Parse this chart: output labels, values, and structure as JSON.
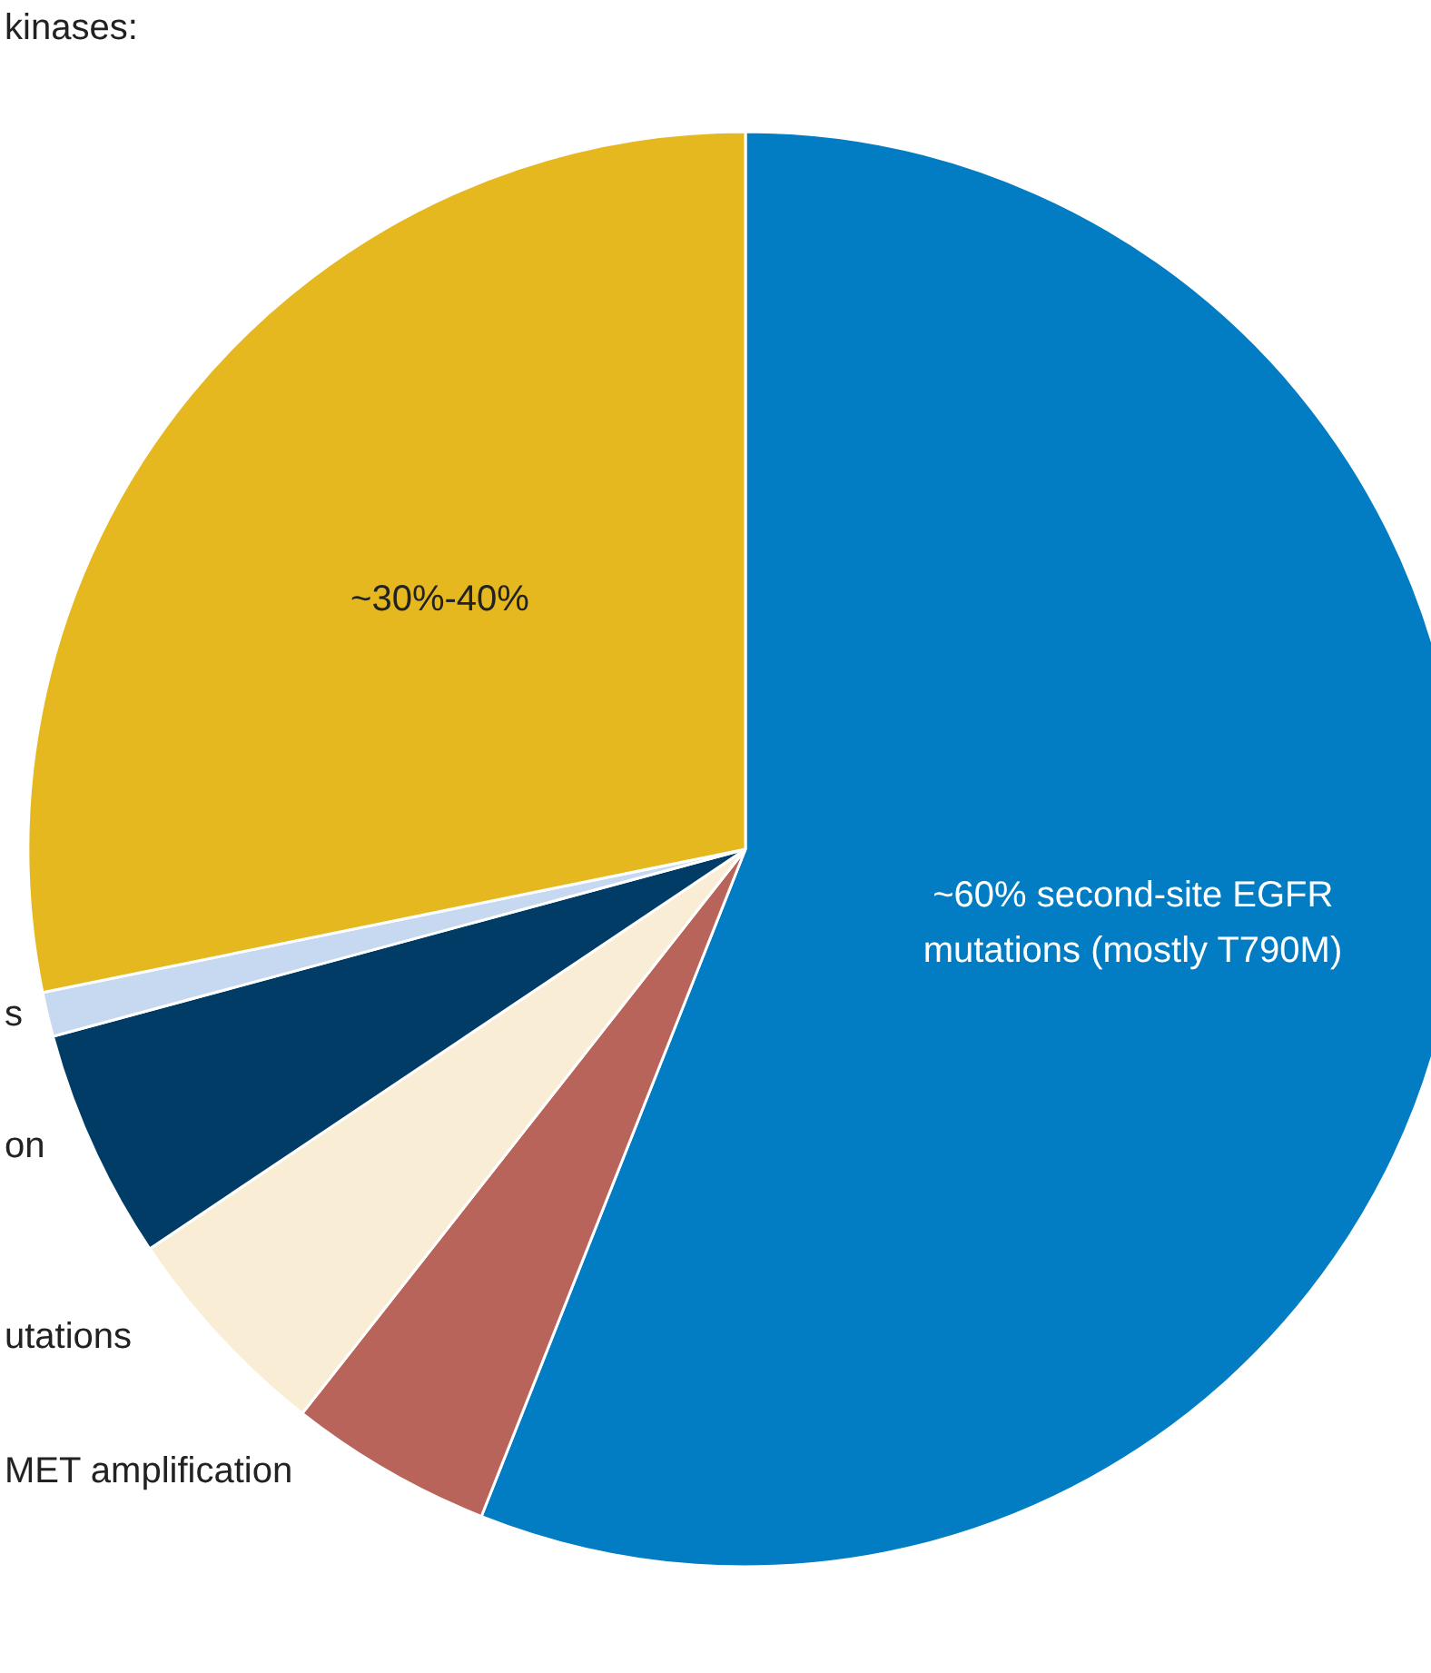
{
  "chart_data": {
    "type": "pie",
    "categories": [
      "~60% second-site EGFR\nmutations (mostly T790M)",
      "MET amplification",
      "utations",
      "on",
      "s",
      "~30%-40%"
    ],
    "values": [
      56,
      4.6,
      5,
      5.2,
      1,
      28.2
    ],
    "colors": [
      "#027cc2",
      "#b9645a",
      "#f9eed5",
      "#003c66",
      "#c6d9f0",
      "#e6b820"
    ],
    "annotations": [
      "kinases:"
    ]
  }
}
